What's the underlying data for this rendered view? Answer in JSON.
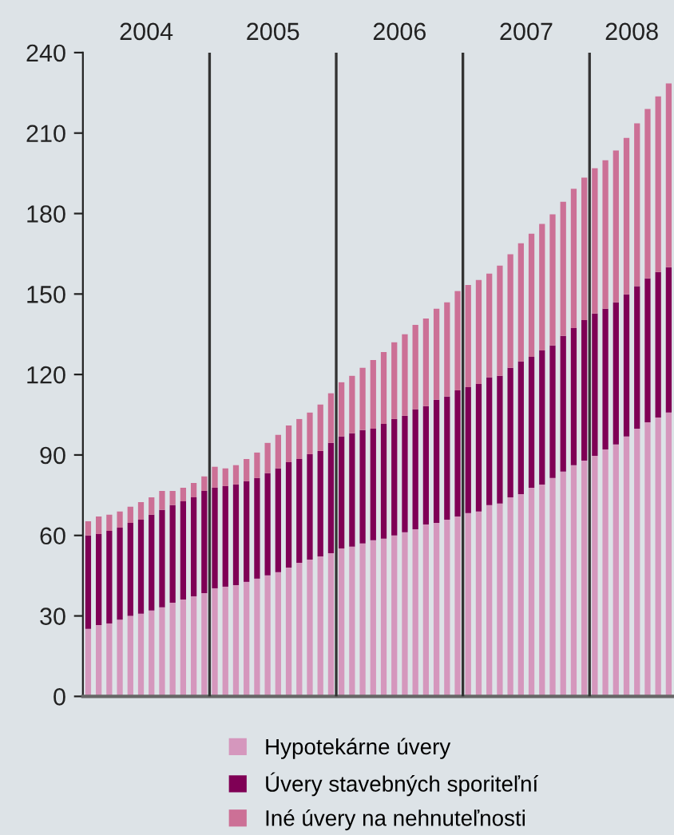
{
  "chart_data": {
    "type": "bar",
    "stacked": true,
    "categories": [
      null,
      null,
      null,
      null,
      null,
      null,
      null,
      null,
      null,
      null,
      null,
      null,
      null,
      null,
      null,
      null,
      null,
      null,
      null,
      null,
      null,
      null,
      null,
      null,
      null,
      null,
      null,
      null,
      null,
      null,
      null,
      null,
      null,
      null,
      null,
      null,
      null,
      null,
      null,
      null,
      null,
      null,
      null,
      null,
      null,
      null,
      null,
      null,
      null,
      null,
      null,
      null,
      null,
      null,
      null,
      null
    ],
    "annotations": [
      "2004",
      "2005",
      "2006",
      "2007",
      "2008"
    ],
    "series": [
      {
        "name": "Hypotekárne úvery",
        "color": "#d597bd",
        "values": [
          25.2,
          26.6,
          27.2,
          28.6,
          30.0,
          30.8,
          32.0,
          33.2,
          34.9,
          36.1,
          37.3,
          38.5,
          40.3,
          40.9,
          41.5,
          42.7,
          43.9,
          45.1,
          46.3,
          48.0,
          49.8,
          51.0,
          52.2,
          53.4,
          55.2,
          55.8,
          57.0,
          58.2,
          58.8,
          60.0,
          61.2,
          62.3,
          64.1,
          64.7,
          65.9,
          67.1,
          68.3,
          68.9,
          71.3,
          71.9,
          74.2,
          75.4,
          77.8,
          79.0,
          81.4,
          83.8,
          86.2,
          87.9,
          89.7,
          92.1,
          93.9,
          96.9,
          99.8,
          102.2,
          104.0,
          105.8
        ]
      },
      {
        "name": "Úvery stavebných sporiteľní",
        "color": "#7f0055",
        "values": [
          34.8,
          33.9,
          34.5,
          34.3,
          34.7,
          35.1,
          35.7,
          36.3,
          36.4,
          36.6,
          36.9,
          38.1,
          37.5,
          37.5,
          37.5,
          37.5,
          37.5,
          38.1,
          38.7,
          39.3,
          38.7,
          39.3,
          39.3,
          41.1,
          41.7,
          42.3,
          42.3,
          41.6,
          42.8,
          43.4,
          43.4,
          44.7,
          44.1,
          45.9,
          45.9,
          47.0,
          47.0,
          47.6,
          47.6,
          47.6,
          48.3,
          49.5,
          48.8,
          50.0,
          49.4,
          50.6,
          51.1,
          52.4,
          53.0,
          52.4,
          53.0,
          53.0,
          53.1,
          53.6,
          54.2,
          54.2
        ]
      },
      {
        "name": "Iné úvery na nehnuteľnosti",
        "color": "#cc7096",
        "values": [
          5.3,
          6.6,
          6.0,
          6.0,
          6.0,
          6.5,
          6.5,
          7.1,
          5.3,
          5.1,
          5.4,
          5.4,
          7.8,
          6.6,
          7.2,
          8.3,
          9.5,
          11.3,
          12.5,
          13.7,
          14.9,
          15.5,
          17.3,
          18.5,
          20.2,
          21.4,
          23.2,
          25.6,
          26.8,
          28.6,
          30.4,
          31.5,
          32.7,
          33.9,
          35.1,
          37.0,
          38.1,
          38.7,
          38.7,
          41.1,
          42.3,
          44.0,
          45.9,
          47.1,
          48.9,
          50.0,
          51.9,
          53.1,
          54.2,
          55.4,
          56.6,
          58.3,
          60.7,
          63.2,
          65.5,
          68.5
        ]
      }
    ],
    "ylim": [
      0,
      240
    ],
    "yticks": [
      0,
      30,
      60,
      90,
      120,
      150,
      180,
      210,
      240
    ],
    "grid": false,
    "legend": "bottom"
  }
}
